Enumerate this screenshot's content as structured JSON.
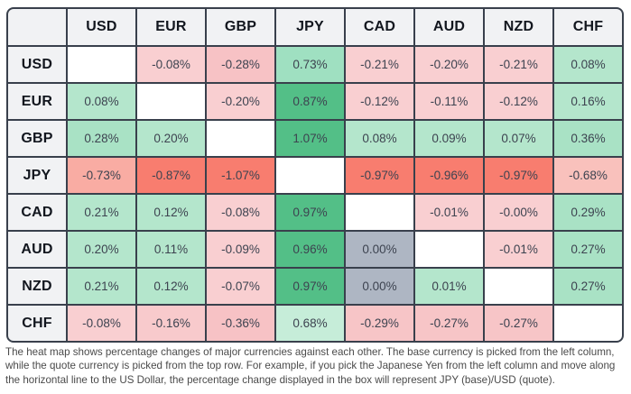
{
  "heatmap_style": {
    "border_color": "#39404c",
    "header_bg": "#f1f2f4",
    "header_text_color": "#12161e",
    "value_text_color": "#3d4350",
    "diagonal_bg": "#ffffff",
    "zero_gray": "#aeb6c3",
    "strong_green": "#53bf87",
    "light_green": "#b4e6cc",
    "strong_red": "#f87d6f",
    "light_red": "#f9cfd1"
  },
  "chart_data": {
    "type": "heatmap",
    "description": "Currency heat map: percentage change of base currency (left column) vs quote currency (top row)",
    "columns": [
      "USD",
      "EUR",
      "GBP",
      "JPY",
      "CAD",
      "AUD",
      "NZD",
      "CHF"
    ],
    "rows": [
      "USD",
      "EUR",
      "GBP",
      "JPY",
      "CAD",
      "AUD",
      "NZD",
      "CHF"
    ],
    "corner_label": "",
    "values_pct": [
      [
        null,
        -0.08,
        -0.28,
        0.73,
        -0.21,
        -0.2,
        -0.21,
        0.08
      ],
      [
        0.08,
        null,
        -0.2,
        0.87,
        -0.12,
        -0.11,
        -0.12,
        0.16
      ],
      [
        0.28,
        0.2,
        null,
        1.07,
        0.08,
        0.09,
        0.07,
        0.36
      ],
      [
        -0.73,
        -0.87,
        -1.07,
        null,
        -0.97,
        -0.96,
        -0.97,
        -0.68
      ],
      [
        0.21,
        0.12,
        -0.08,
        0.97,
        null,
        -0.01,
        -0.0,
        0.29
      ],
      [
        0.2,
        0.11,
        -0.09,
        0.96,
        0.0,
        null,
        -0.01,
        0.27
      ],
      [
        0.21,
        0.12,
        -0.07,
        0.97,
        0.0,
        0.01,
        null,
        0.27
      ],
      [
        -0.08,
        -0.16,
        -0.36,
        0.68,
        -0.29,
        -0.27,
        -0.27,
        null
      ]
    ],
    "labels": [
      [
        "",
        "-0.08%",
        "-0.28%",
        "0.73%",
        "-0.21%",
        "-0.20%",
        "-0.21%",
        "0.08%"
      ],
      [
        "0.08%",
        "",
        "-0.20%",
        "0.87%",
        "-0.12%",
        "-0.11%",
        "-0.12%",
        "0.16%"
      ],
      [
        "0.28%",
        "0.20%",
        "",
        "1.07%",
        "0.08%",
        "0.09%",
        "0.07%",
        "0.36%"
      ],
      [
        "-0.73%",
        "-0.87%",
        "-1.07%",
        "",
        "-0.97%",
        "-0.96%",
        "-0.97%",
        "-0.68%"
      ],
      [
        "0.21%",
        "0.12%",
        "-0.08%",
        "0.97%",
        "",
        "-0.01%",
        "-0.00%",
        "0.29%"
      ],
      [
        "0.20%",
        "0.11%",
        "-0.09%",
        "0.96%",
        "0.00%",
        "",
        "-0.01%",
        "0.27%"
      ],
      [
        "0.21%",
        "0.12%",
        "-0.07%",
        "0.97%",
        "0.00%",
        "0.01%",
        "",
        "0.27%"
      ],
      [
        "-0.08%",
        "-0.16%",
        "-0.36%",
        "0.68%",
        "-0.29%",
        "-0.27%",
        "-0.27%",
        ""
      ]
    ],
    "cell_colors": [
      [
        "#ffffff",
        "#f9cfd1",
        "#f7c2c5",
        "#9fe0c1",
        "#f9cfd1",
        "#f9cfd1",
        "#f9cfd1",
        "#b4e6cc"
      ],
      [
        "#b4e6cc",
        "#ffffff",
        "#f9cfd1",
        "#53bf87",
        "#f9cfd1",
        "#f9cfd1",
        "#f9cfd1",
        "#b4e6cc"
      ],
      [
        "#a9e2c5",
        "#b4e6cc",
        "#ffffff",
        "#53bf87",
        "#b4e6cc",
        "#b4e6cc",
        "#b4e6cc",
        "#a9e2c5"
      ],
      [
        "#f9aca3",
        "#f87d6f",
        "#f87d6f",
        "#ffffff",
        "#f87d6f",
        "#f87d6f",
        "#f87d6f",
        "#f9c1bc"
      ],
      [
        "#b4e6cc",
        "#b4e6cc",
        "#f9cfd1",
        "#53bf87",
        "#ffffff",
        "#f9cfd1",
        "#f9cfd1",
        "#a9e2c5"
      ],
      [
        "#b4e6cc",
        "#b4e6cc",
        "#f9cfd1",
        "#53bf87",
        "#aeb6c3",
        "#ffffff",
        "#f9cfd1",
        "#a9e2c5"
      ],
      [
        "#b4e6cc",
        "#b4e6cc",
        "#f9cfd1",
        "#53bf87",
        "#aeb6c3",
        "#b4e6cc",
        "#ffffff",
        "#a9e2c5"
      ],
      [
        "#f9cfd1",
        "#f8cacc",
        "#f7c2c5",
        "#c6edd9",
        "#f7c5c7",
        "#f7c5c7",
        "#f7c5c7",
        "#ffffff"
      ]
    ]
  },
  "caption": {
    "text": "The heat map shows percentage changes of major currencies against each other. The base currency is picked from the left column, while the quote currency is picked from the top row. For example, if you pick the Japanese Yen from the left column and move along the horizontal line to the US Dollar, the percentage change displayed in the box will represent JPY (base)/USD (quote)."
  }
}
